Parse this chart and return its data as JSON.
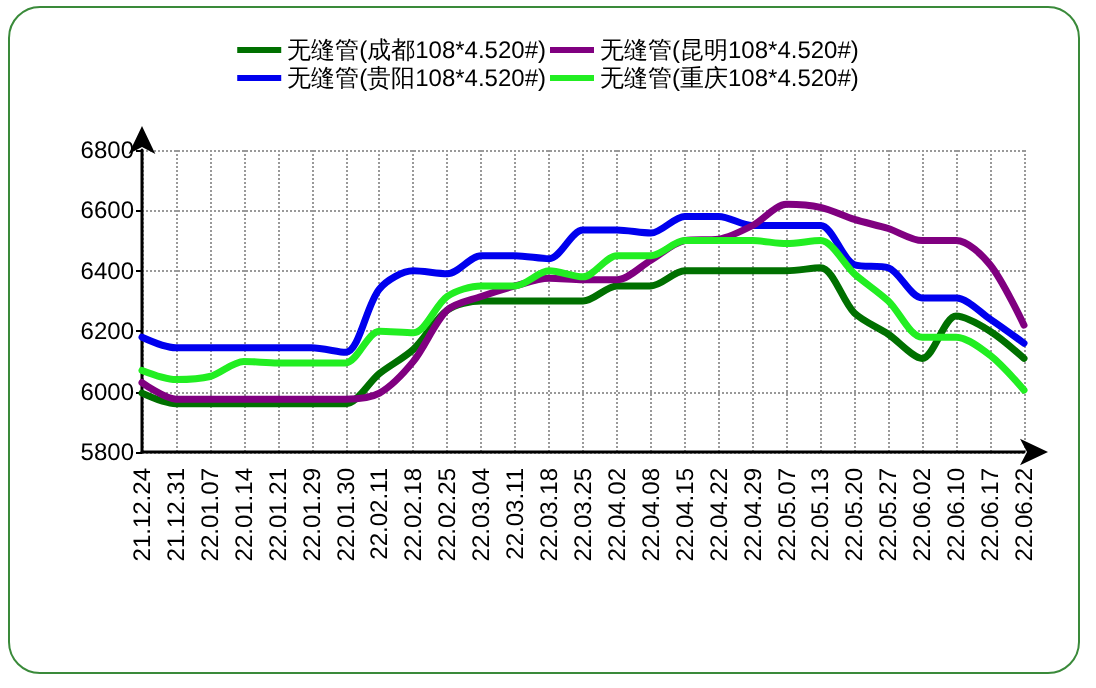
{
  "chart_data": {
    "type": "line",
    "categories": [
      "21.12.24",
      "21.12.31",
      "22.01.07",
      "22.01.14",
      "22.01.21",
      "22.01.29",
      "22.01.30",
      "22.02.11",
      "22.02.18",
      "22.02.25",
      "22.03.04",
      "22.03.11",
      "22.03.18",
      "22.03.25",
      "22.04.02",
      "22.04.08",
      "22.04.15",
      "22.04.22",
      "22.04.29",
      "22.05.07",
      "22.05.13",
      "22.05.20",
      "22.05.27",
      "22.06.02",
      "22.06.10",
      "22.06.17",
      "22.06.22"
    ],
    "series": [
      {
        "name": "无缝管(成都108*4.520#)",
        "color": "#007000",
        "values": [
          5995,
          5960,
          5960,
          5960,
          5960,
          5960,
          5960,
          6060,
          6140,
          6270,
          6300,
          6300,
          6300,
          6300,
          6350,
          6350,
          6400,
          6400,
          6400,
          6400,
          6410,
          6260,
          6190,
          6110,
          6250,
          6200,
          6110
        ]
      },
      {
        "name": "无缝管(贵阳108*4.520#)",
        "color": "#0000ee",
        "values": [
          6180,
          6145,
          6145,
          6145,
          6145,
          6145,
          6130,
          6340,
          6400,
          6390,
          6450,
          6450,
          6440,
          6535,
          6535,
          6525,
          6580,
          6580,
          6550,
          6550,
          6550,
          6420,
          6410,
          6310,
          6310,
          6240,
          6160
        ]
      },
      {
        "name": "无缝管(昆明108*4.520#)",
        "color": "#800080",
        "values": [
          6030,
          5975,
          5975,
          5975,
          5975,
          5975,
          5975,
          5995,
          6100,
          6270,
          6315,
          6350,
          6375,
          6370,
          6370,
          6435,
          6500,
          6505,
          6550,
          6620,
          6610,
          6570,
          6540,
          6500,
          6500,
          6420,
          6220
        ]
      },
      {
        "name": "无缝管(重庆108*4.520#)",
        "color": "#22ee22",
        "values": [
          6070,
          6040,
          6050,
          6100,
          6095,
          6095,
          6095,
          6200,
          6195,
          6315,
          6350,
          6350,
          6400,
          6380,
          6450,
          6450,
          6500,
          6500,
          6500,
          6490,
          6500,
          6390,
          6300,
          6180,
          6180,
          6120,
          6005
        ]
      }
    ],
    "ylim": [
      5800,
      6800
    ],
    "yticks": [
      5800,
      6000,
      6200,
      6400,
      6600,
      6800
    ],
    "grid": true,
    "legend": "top",
    "marker": "none",
    "line_style": "solid"
  }
}
